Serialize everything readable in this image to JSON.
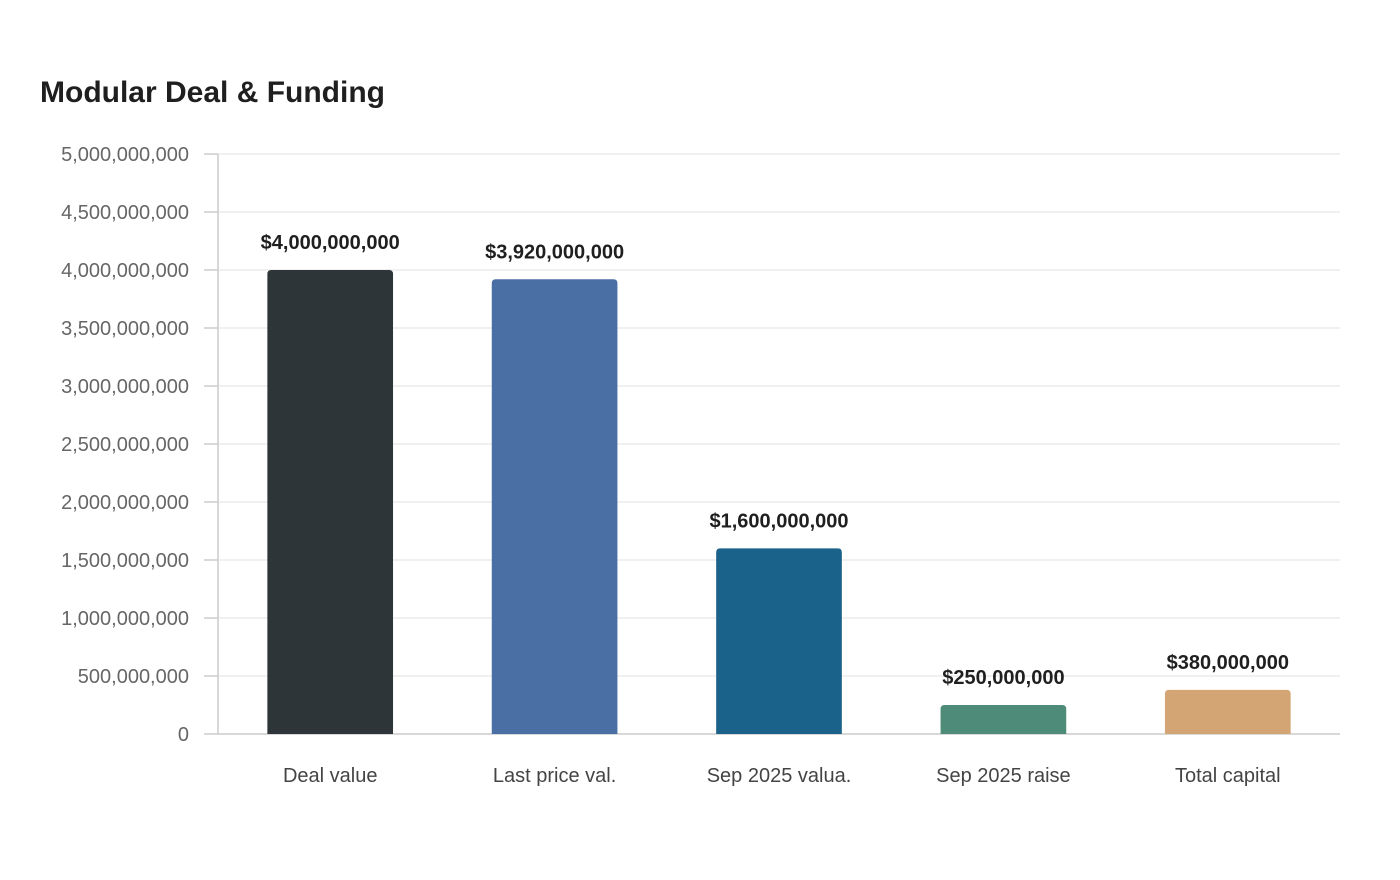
{
  "chart_data": {
    "type": "bar",
    "title": "Modular Deal & Funding",
    "xlabel": "",
    "ylabel": "",
    "categories": [
      "Deal value",
      "Last price val.",
      "Sep 2025 valua.",
      "Sep 2025 raise",
      "Total capital"
    ],
    "values": [
      4000000000,
      3920000000,
      1600000000,
      250000000,
      380000000
    ],
    "data_labels": [
      "$4,000,000,000",
      "$3,920,000,000",
      "$1,600,000,000",
      "$250,000,000",
      "$380,000,000"
    ],
    "bar_colors": [
      "#2e3538",
      "#4a6fa5",
      "#1a628a",
      "#4e8b79",
      "#d4a574"
    ],
    "ylim": [
      0,
      5000000000
    ],
    "yticks": [
      0,
      500000000,
      1000000000,
      1500000000,
      2000000000,
      2500000000,
      3000000000,
      3500000000,
      4000000000,
      4500000000,
      5000000000
    ],
    "ytick_labels": [
      "0",
      "500,000,000",
      "1,000,000,000",
      "1,500,000,000",
      "2,000,000,000",
      "2,500,000,000",
      "3,000,000,000",
      "3,500,000,000",
      "4,000,000,000",
      "4,500,000,000",
      "5,000,000,000"
    ],
    "grid": true,
    "legend": "none"
  }
}
